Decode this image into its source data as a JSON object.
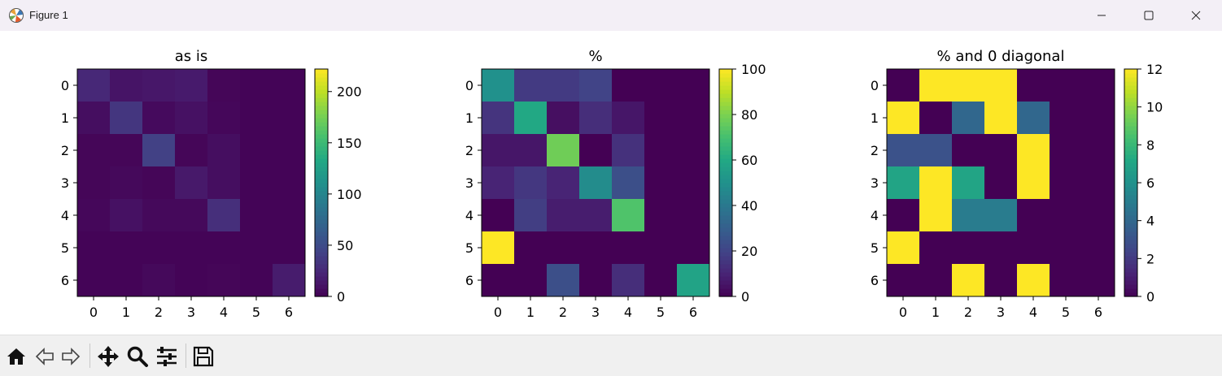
{
  "window": {
    "title": "Figure 1",
    "icons": [
      "matplotlib-app-icon",
      "minimize-icon",
      "maximize-icon",
      "close-icon"
    ]
  },
  "toolbar": {
    "buttons": [
      "home-icon",
      "back-icon",
      "forward-icon",
      "pan-icon",
      "zoom-icon",
      "configure-subplots-icon",
      "save-icon"
    ]
  },
  "chart_data": [
    {
      "type": "heatmap",
      "title": "as is",
      "x": [
        0,
        1,
        2,
        3,
        4,
        5,
        6
      ],
      "y": [
        0,
        1,
        2,
        3,
        4,
        5,
        6
      ],
      "colormap": "viridis",
      "vmin": 0,
      "vmax": 222,
      "colorbar_ticks": [
        0,
        50,
        100,
        150,
        200
      ],
      "values": [
        [
          25,
          12,
          14,
          16,
          3,
          2,
          2
        ],
        [
          8,
          35,
          6,
          10,
          4,
          2,
          2
        ],
        [
          3,
          3,
          42,
          3,
          8,
          2,
          2
        ],
        [
          3,
          5,
          3,
          15,
          8,
          2,
          2
        ],
        [
          4,
          10,
          5,
          5,
          30,
          2,
          2
        ],
        [
          2,
          2,
          2,
          2,
          2,
          2,
          2
        ],
        [
          2,
          2,
          5,
          2,
          3,
          2,
          17
        ]
      ]
    },
    {
      "type": "heatmap",
      "title": "%",
      "x": [
        0,
        1,
        2,
        3,
        4,
        5,
        6
      ],
      "y": [
        0,
        1,
        2,
        3,
        4,
        5,
        6
      ],
      "colormap": "viridis",
      "vmin": 0,
      "vmax": 100,
      "colorbar_ticks": [
        0,
        20,
        40,
        60,
        80,
        100
      ],
      "values": [
        [
          50,
          17,
          17,
          20,
          0,
          0,
          0
        ],
        [
          15,
          60,
          4,
          13,
          6,
          0,
          0
        ],
        [
          6,
          6,
          78,
          0,
          14,
          0,
          0
        ],
        [
          10,
          16,
          10,
          48,
          24,
          0,
          0
        ],
        [
          0,
          18,
          8,
          8,
          72,
          0,
          0
        ],
        [
          100,
          0,
          0,
          0,
          0,
          0,
          0
        ],
        [
          0,
          0,
          24,
          0,
          13,
          0,
          58
        ]
      ]
    },
    {
      "type": "heatmap",
      "title": "% and 0 diagonal",
      "x": [
        0,
        1,
        2,
        3,
        4,
        5,
        6
      ],
      "y": [
        0,
        1,
        2,
        3,
        4,
        5,
        6
      ],
      "colormap": "viridis",
      "vmin": 0,
      "vmax": 12,
      "colorbar_ticks": [
        0,
        2,
        4,
        6,
        8,
        10,
        12
      ],
      "values": [
        [
          0,
          12,
          12,
          12,
          0,
          0,
          0
        ],
        [
          12,
          0,
          4,
          12,
          4,
          0,
          0
        ],
        [
          3,
          3,
          0,
          0,
          12,
          0,
          0
        ],
        [
          7,
          12,
          7,
          0,
          12,
          0,
          0
        ],
        [
          0,
          12,
          5,
          5,
          0,
          0,
          0
        ],
        [
          12,
          0,
          0,
          0,
          0,
          0,
          0
        ],
        [
          0,
          0,
          12,
          0,
          12,
          0,
          0
        ]
      ]
    }
  ]
}
